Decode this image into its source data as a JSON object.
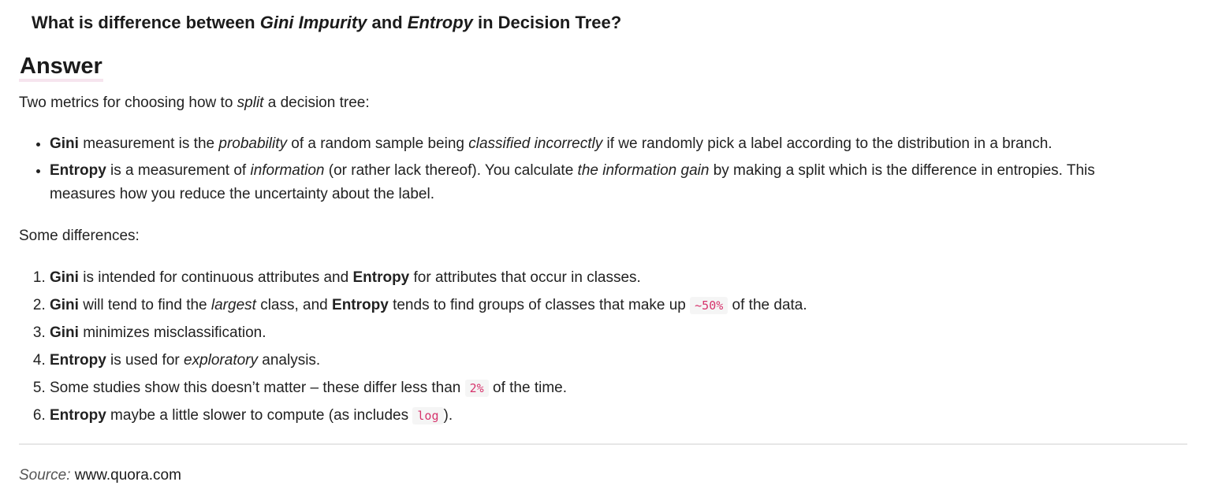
{
  "question": {
    "p1": "What is difference between ",
    "term1": "Gini Impurity",
    "p2": " and ",
    "term2": "Entropy",
    "p3": " in Decision Tree?"
  },
  "answer_heading": "Answer",
  "intro": {
    "p1": "Two metrics for choosing how to ",
    "em": "split",
    "p2": " a decision tree:"
  },
  "bullets": [
    {
      "term": "Gini",
      "t1": " measurement is the ",
      "em1": "probability",
      "t2": " of a random sample being ",
      "em2": "classified incorrectly",
      "t3": " if we randomly pick a label according to the distribution in a branch."
    },
    {
      "term": "Entropy",
      "t1": " is a measurement of ",
      "em1": "information",
      "t2": " (or rather lack thereof). You calculate ",
      "em2": "the information gain",
      "t3": " by making a split which is the difference in entropies. This measures how you reduce the uncertainty about the label."
    }
  ],
  "some_differences": "Some differences:",
  "differences": [
    {
      "b1": "Gini",
      "t1": " is intended for continuous attributes and ",
      "b2": "Entropy",
      "t2": " for attributes that occur in classes."
    },
    {
      "b1": "Gini",
      "t1": " will tend to find the ",
      "em": "largest",
      "t2": " class, and ",
      "b2": "Entropy",
      "t3": " tends to find groups of classes that make up ",
      "code": "~50%",
      "t4": " of the data."
    },
    {
      "b1": "Gini",
      "t1": " minimizes misclassification."
    },
    {
      "b1": "Entropy",
      "t1": " is used for ",
      "em": "exploratory",
      "t2": " analysis."
    },
    {
      "t1": "Some studies show this doesn’t matter – these differ less than ",
      "code": "2%",
      "t2": " of the time."
    },
    {
      "b1": "Entropy",
      "t1": " maybe a little slower to compute (as includes ",
      "code": "log",
      "t2": ")."
    }
  ],
  "source": {
    "label": "Source:",
    "url": "www.quora.com"
  }
}
